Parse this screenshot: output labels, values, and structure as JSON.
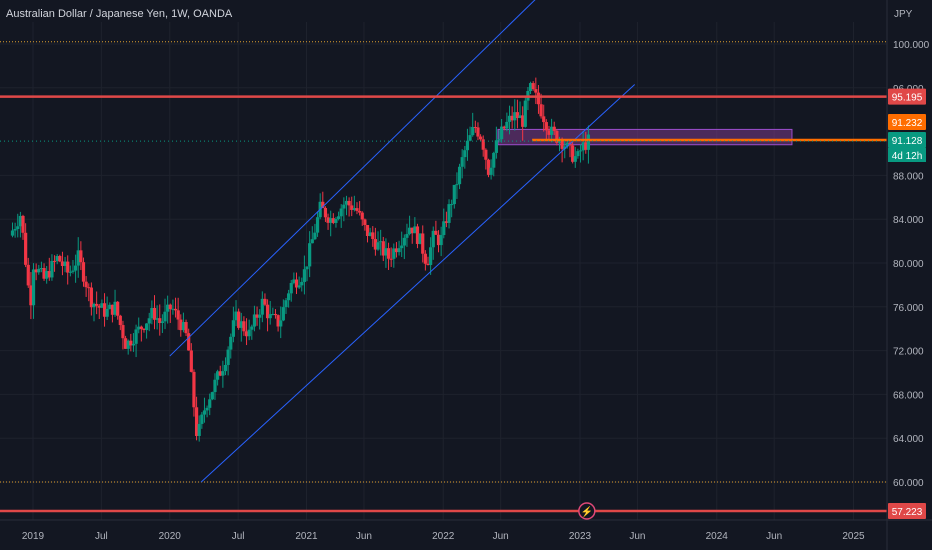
{
  "header": {
    "symbol_title": "Australian Dollar / Japanese Yen, 1W, OANDA",
    "currency": "JPY"
  },
  "chart_data": {
    "type": "candlestick",
    "ylim": [
      56,
      104
    ],
    "y_ticks": [
      "60.000",
      "64.000",
      "68.000",
      "72.000",
      "76.000",
      "80.000",
      "84.000",
      "88.000",
      "96.000",
      "100.000"
    ],
    "y_tick_values": [
      60,
      64,
      68,
      72,
      76,
      80,
      84,
      88,
      96,
      100
    ],
    "x_ticks": [
      "2019",
      "Jul",
      "2020",
      "Jul",
      "2021",
      "Jun",
      "2022",
      "Jun",
      "2023",
      "Jun",
      "2024",
      "Jun",
      "2025"
    ],
    "x_tick_positions_t": [
      2019.0,
      2019.5,
      2020.0,
      2020.5,
      2021.0,
      2021.42,
      2022.0,
      2022.42,
      2023.0,
      2023.42,
      2024.0,
      2024.42,
      2025.0
    ],
    "t_range": [
      2018.85,
      2025.2
    ],
    "price_path": [
      [
        2018.85,
        82.5
      ],
      [
        2018.93,
        84.5
      ],
      [
        2019.0,
        76
      ],
      [
        2019.02,
        80
      ],
      [
        2019.1,
        78.5
      ],
      [
        2019.2,
        80.5
      ],
      [
        2019.28,
        79
      ],
      [
        2019.35,
        80.5
      ],
      [
        2019.45,
        76.5
      ],
      [
        2019.55,
        75.5
      ],
      [
        2019.62,
        76
      ],
      [
        2019.7,
        72.5
      ],
      [
        2019.8,
        74
      ],
      [
        2019.9,
        75.5
      ],
      [
        2019.95,
        74.5
      ],
      [
        2020.03,
        76
      ],
      [
        2020.1,
        74.5
      ],
      [
        2020.15,
        73
      ],
      [
        2020.18,
        69
      ],
      [
        2020.22,
        64
      ],
      [
        2020.28,
        67
      ],
      [
        2020.35,
        69
      ],
      [
        2020.42,
        71
      ],
      [
        2020.5,
        75
      ],
      [
        2020.6,
        73.5
      ],
      [
        2020.7,
        76.5
      ],
      [
        2020.75,
        75
      ],
      [
        2020.82,
        74.5
      ],
      [
        2020.9,
        78
      ],
      [
        2021.0,
        79
      ],
      [
        2021.05,
        81.5
      ],
      [
        2021.12,
        85
      ],
      [
        2021.2,
        84
      ],
      [
        2021.3,
        85.5
      ],
      [
        2021.38,
        85
      ],
      [
        2021.45,
        83
      ],
      [
        2021.55,
        81.5
      ],
      [
        2021.62,
        80.5
      ],
      [
        2021.7,
        82
      ],
      [
        2021.78,
        83.5
      ],
      [
        2021.85,
        82
      ],
      [
        2021.9,
        80
      ],
      [
        2021.95,
        82.5
      ],
      [
        2022.0,
        82
      ],
      [
        2022.05,
        84.5
      ],
      [
        2022.1,
        86.5
      ],
      [
        2022.17,
        90
      ],
      [
        2022.25,
        92.5
      ],
      [
        2022.3,
        91.5
      ],
      [
        2022.35,
        88.5
      ],
      [
        2022.4,
        90.5
      ],
      [
        2022.45,
        92
      ],
      [
        2022.5,
        93
      ],
      [
        2022.55,
        93.5
      ],
      [
        2022.6,
        93
      ],
      [
        2022.65,
        96
      ],
      [
        2022.7,
        95
      ],
      [
        2022.75,
        93.5
      ],
      [
        2022.8,
        92
      ],
      [
        2022.85,
        91.5
      ],
      [
        2022.9,
        91
      ],
      [
        2022.95,
        90
      ],
      [
        2023.0,
        89.5
      ],
      [
        2023.03,
        90.5
      ],
      [
        2023.08,
        91.13
      ]
    ],
    "horizontal_levels": [
      {
        "value": 95.195,
        "label": "95.195",
        "color": "#e04848"
      },
      {
        "value": 91.232,
        "label": "91.232",
        "color": "#ff6d00"
      },
      {
        "value": 91.128,
        "label": "91.128",
        "color": "#089981"
      },
      {
        "value": 57.223,
        "label": "57.223",
        "color": "#e04848"
      }
    ],
    "dotted_levels": [
      {
        "value": 100.2,
        "color": "#e0a030"
      },
      {
        "value": 60.0,
        "color": "#e0a030"
      }
    ],
    "countdown": "4d 12h",
    "channel_lines": [
      {
        "from": [
          2020.0,
          71.5
        ],
        "to": [
          2022.75,
          105
        ]
      },
      {
        "from": [
          2020.23,
          60
        ],
        "to": [
          2023.4,
          96.3
        ]
      }
    ],
    "zone": {
      "t0": 2022.4,
      "t1": 2024.55,
      "top": 92.2,
      "bottom": 90.8
    },
    "colors": {
      "up": "#089981",
      "down": "#f23645",
      "channel": "#2962ff",
      "zone_fill": "#7b3a8a",
      "zone_border": "#9c4dcc"
    }
  }
}
